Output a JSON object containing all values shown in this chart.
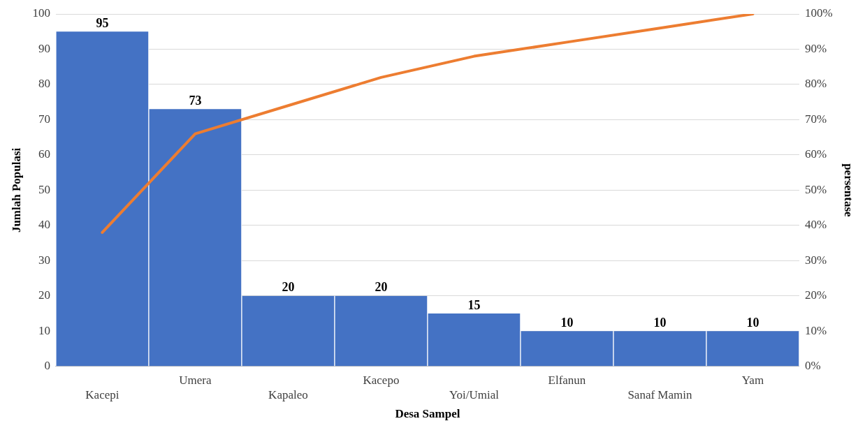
{
  "chart_data": {
    "type": "bar",
    "xlabel": "Desa Sampel",
    "ylabel": "Jumlah Populasi",
    "y2label": "persentase",
    "categories": [
      "Kacepi",
      "Umera",
      "Kapaleo",
      "Kacepo",
      "Yoi/Umial",
      "Elfanun",
      "Sanaf Mamin",
      "Yam"
    ],
    "series": [
      {
        "color": "#4472c4",
        "values": [
          95,
          73,
          20,
          20,
          15,
          10,
          10,
          10
        ],
        "value_labels": [
          "95",
          "73",
          "20",
          "20",
          "15",
          "10",
          "10",
          "10"
        ]
      },
      {
        "type": "line",
        "axis": "y2",
        "color": "#ed7d31",
        "values": [
          38,
          66,
          74,
          82,
          88,
          92,
          96,
          100
        ]
      }
    ],
    "ylim": [
      0,
      100
    ],
    "yticks": [
      0,
      10,
      20,
      30,
      40,
      50,
      60,
      70,
      80,
      90,
      100
    ],
    "y2lim": [
      0,
      100
    ],
    "y2ticks": [
      {
        "value": 0,
        "label": "0%"
      },
      {
        "value": 10,
        "label": "10%"
      },
      {
        "value": 20,
        "label": "20%"
      },
      {
        "value": 30,
        "label": "30%"
      },
      {
        "value": 40,
        "label": "40%"
      },
      {
        "value": 50,
        "label": "50%"
      },
      {
        "value": 60,
        "label": "60%"
      },
      {
        "value": 70,
        "label": "70%"
      },
      {
        "value": 80,
        "label": "80%"
      },
      {
        "value": 90,
        "label": "90%"
      },
      {
        "value": 100,
        "label": "100%"
      }
    ],
    "grid": "y",
    "legend": false,
    "marker": "none",
    "line_style": "solid"
  }
}
